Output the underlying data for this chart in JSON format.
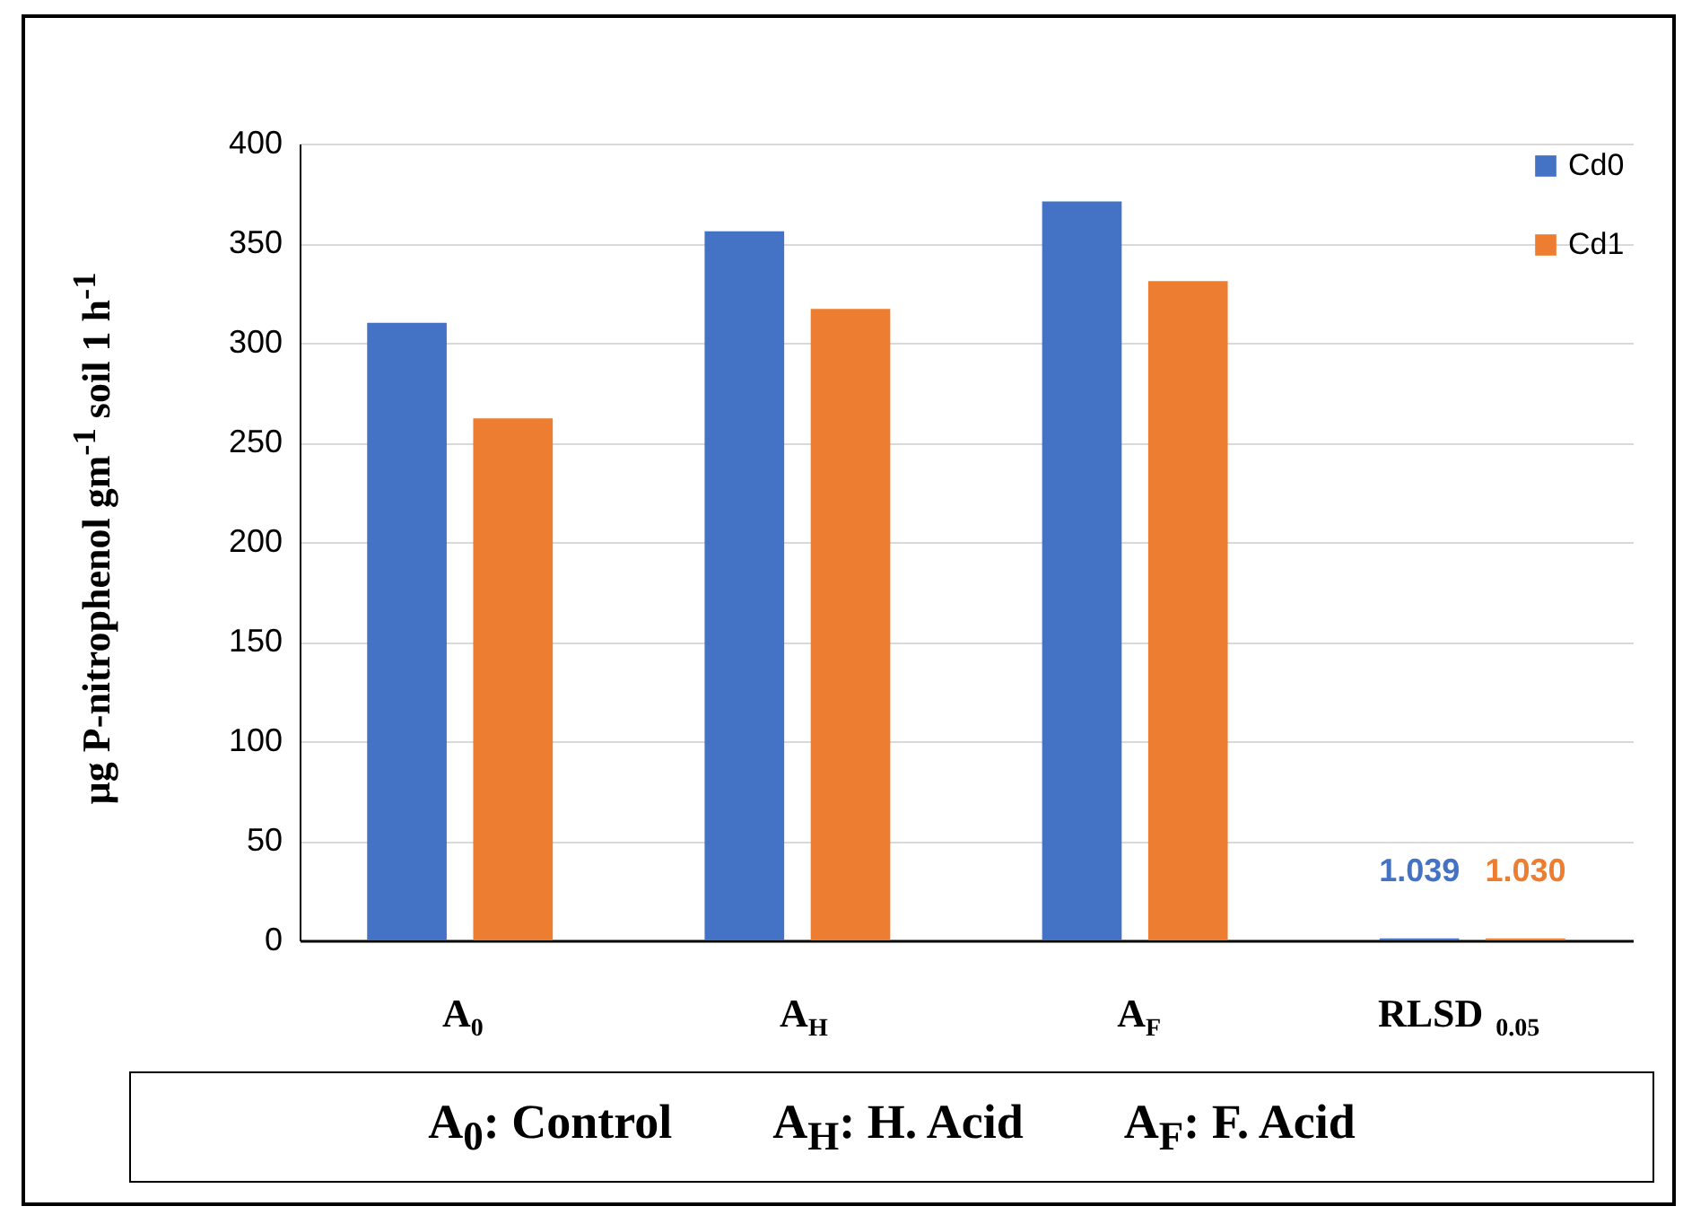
{
  "chart_data": {
    "type": "bar",
    "ylabel": "µg P-nitrophenol gm$^{-1}$ soil 1 h$^{-1}$",
    "categories": [
      "A$_{0}$",
      "A$_{H}$",
      "A$_{F}$",
      "RLSD $_{0.05}$"
    ],
    "series": [
      {
        "name": "Cd0",
        "color": "#4472c4",
        "values": [
          310,
          356,
          371,
          1.039
        ],
        "value_labels": [
          null,
          null,
          null,
          "1.039"
        ]
      },
      {
        "name": "Cd1",
        "color": "#ed7d31",
        "values": [
          262,
          317,
          331,
          1.03
        ],
        "value_labels": [
          null,
          null,
          null,
          "1.030"
        ]
      }
    ],
    "ylim": [
      0,
      400
    ],
    "yticks": [
      0,
      50,
      100,
      150,
      200,
      250,
      300,
      350,
      400
    ],
    "grid": "y",
    "legend": "top right",
    "annotations": [
      "A$_{0}$: Control",
      "A$_{H}$: H. Acid",
      "A$_{F}$: F. Acid"
    ]
  }
}
